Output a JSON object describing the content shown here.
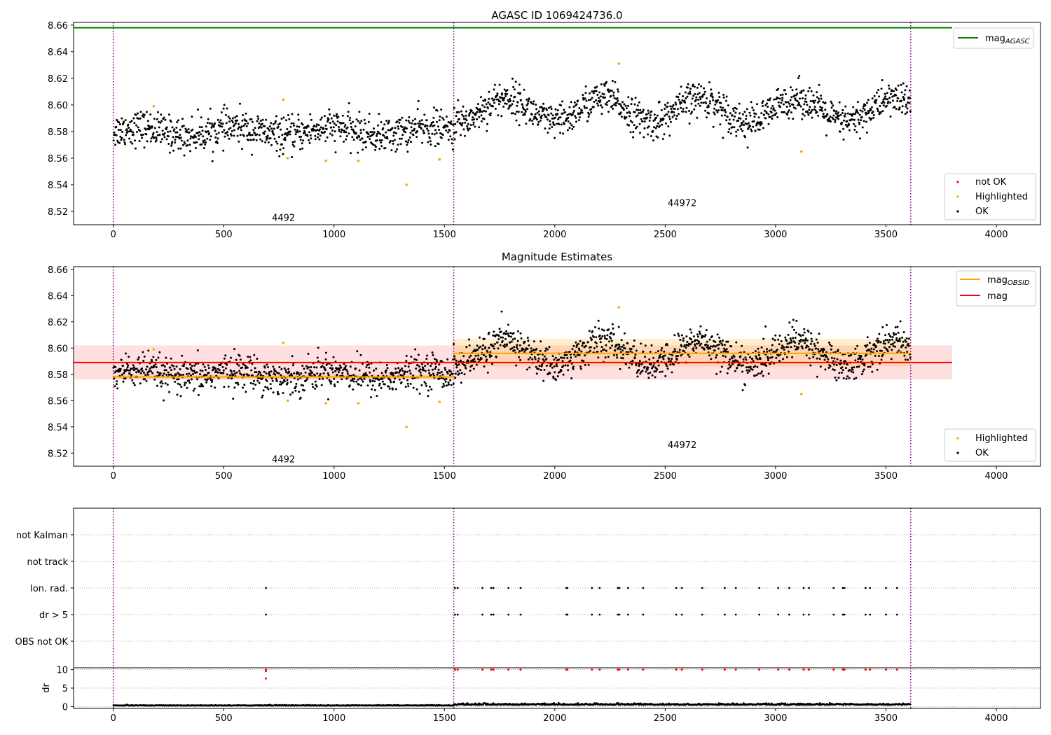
{
  "chart_data": [
    {
      "type": "scatter",
      "title": "AGASC ID 1069424736.0",
      "xlim": [
        -180,
        4200
      ],
      "ylim": [
        8.51,
        8.662
      ],
      "xticks": [
        0,
        500,
        1000,
        1500,
        2000,
        2500,
        3000,
        3500,
        4000
      ],
      "yticks": [
        8.52,
        8.54,
        8.56,
        8.58,
        8.6,
        8.62,
        8.64,
        8.66
      ],
      "obsid_boundaries": [
        0,
        1542,
        3612
      ],
      "obsid_labels": [
        {
          "text": "4492",
          "x": 771,
          "y": 8.515
        },
        {
          "text": "44972",
          "x": 2577,
          "y": 8.526
        }
      ],
      "lines": [
        {
          "name": "mag_AGASC",
          "legend_main": "mag",
          "legend_sub": "AGASC",
          "color": "#008000",
          "y": 8.658,
          "x": [
            -180,
            3800
          ]
        }
      ],
      "ok_segments": [
        {
          "x0": 0,
          "x1": 1542,
          "base": 8.58,
          "sd": 0.0065,
          "amp": 0.003,
          "count": 800,
          "color": "#000000"
        },
        {
          "x0": 1542,
          "x1": 3612,
          "base": 8.596,
          "sd": 0.0065,
          "amp": 0.009,
          "count": 1100,
          "color": "#000000"
        }
      ],
      "highlighted": {
        "x": [
          183,
          770,
          790,
          963,
          1110,
          1328,
          1478,
          2290,
          3117
        ],
        "y": [
          8.599,
          8.604,
          8.56,
          8.558,
          8.558,
          8.54,
          8.559,
          8.631,
          8.565
        ]
      },
      "not_ok": {
        "x": [],
        "y": []
      },
      "legend_markers": [
        {
          "label": "not OK",
          "color": "#ff0000"
        },
        {
          "label": "Highlighted",
          "color": "#ffa500"
        },
        {
          "label": "OK",
          "color": "#000000"
        }
      ],
      "grid": false,
      "legend": [
        "top-right",
        "bottom-right"
      ]
    },
    {
      "type": "scatter",
      "title": "Magnitude Estimates",
      "xlim": [
        -180,
        4200
      ],
      "ylim": [
        8.51,
        8.662
      ],
      "xticks": [
        0,
        500,
        1000,
        1500,
        2000,
        2500,
        3000,
        3500,
        4000
      ],
      "yticks": [
        8.52,
        8.54,
        8.56,
        8.58,
        8.6,
        8.62,
        8.64,
        8.66
      ],
      "obsid_boundaries": [
        0,
        1542,
        3612
      ],
      "obsid_labels": [
        {
          "text": "4492",
          "x": 771,
          "y": 8.515
        },
        {
          "text": "44972",
          "x": 2577,
          "y": 8.526
        }
      ],
      "bands": [
        {
          "x0": -180,
          "x1": 3800,
          "y0": 8.576,
          "y1": 8.602,
          "color": "#ff0000",
          "opacity": 0.12
        },
        {
          "x0": 0,
          "x1": 1542,
          "y0": 8.576,
          "y1": 8.58,
          "color": "#ffa500",
          "opacity": 0.25
        },
        {
          "x0": 1542,
          "x1": 3612,
          "y0": 8.586,
          "y1": 8.607,
          "color": "#ffa500",
          "opacity": 0.2
        }
      ],
      "lines": [
        {
          "name": "mag_OBSID",
          "legend_main": "mag",
          "legend_sub": "OBSID",
          "color": "#ffa500",
          "segments": [
            {
              "x0": 0,
              "x1": 1542,
              "y": 8.578
            },
            {
              "x0": 1542,
              "x1": 3612,
              "y": 8.596
            }
          ]
        },
        {
          "name": "mag",
          "legend_main": "mag",
          "legend_sub": "",
          "color": "#ff0000",
          "segments": [
            {
              "x0": -180,
              "x1": 3800,
              "y": 8.589
            }
          ]
        }
      ],
      "ok_segments": [
        {
          "x0": 0,
          "x1": 1542,
          "base": 8.58,
          "sd": 0.0065,
          "amp": 0.003,
          "count": 800,
          "color": "#000000"
        },
        {
          "x0": 1542,
          "x1": 3612,
          "base": 8.596,
          "sd": 0.0065,
          "amp": 0.009,
          "count": 1100,
          "color": "#000000"
        }
      ],
      "highlighted": {
        "x": [
          183,
          770,
          790,
          963,
          1110,
          1328,
          1478,
          2290,
          3117
        ],
        "y": [
          8.599,
          8.604,
          8.56,
          8.558,
          8.558,
          8.54,
          8.559,
          8.631,
          8.565
        ]
      },
      "legend_markers": [
        {
          "label": "Highlighted",
          "color": "#ffa500"
        },
        {
          "label": "OK",
          "color": "#000000"
        }
      ],
      "grid": false,
      "legend": [
        "top-right",
        "bottom-right"
      ]
    },
    {
      "type": "scatter",
      "title": "",
      "xlim": [
        -180,
        4200
      ],
      "categories": [
        "not Kalman",
        "not track",
        "Ion. rad.",
        "dr > 5",
        "OBS not OK"
      ],
      "flag_times": [
        691,
        1548,
        1560,
        1672,
        1712,
        1722,
        1790,
        1845,
        2052,
        2057,
        2168,
        2203,
        2286,
        2292,
        2332,
        2400,
        2550,
        2575,
        2668,
        2770,
        2820,
        2926,
        3012,
        3062,
        3127,
        3151,
        3263,
        3305,
        3312,
        3408,
        3428,
        3500,
        3550
      ],
      "flagged_rows": [
        "Ion. rad.",
        "dr > 5"
      ],
      "obsid_boundaries": [
        0,
        1542,
        3612
      ],
      "grid": true
    },
    {
      "type": "scatter",
      "title": "",
      "ylabel": "dr",
      "xlim": [
        -180,
        4200
      ],
      "ylim": [
        -0.5,
        10.5
      ],
      "xticks": [
        0,
        500,
        1000,
        1500,
        2000,
        2500,
        3000,
        3500,
        4000
      ],
      "yticks": [
        0,
        5,
        10
      ],
      "segments": [
        {
          "x0": 0,
          "x1": 1542,
          "base": 0.25,
          "sd": 0.08,
          "count": 500
        },
        {
          "x0": 1542,
          "x1": 3612,
          "base": 0.45,
          "sd": 0.18,
          "count": 700
        }
      ],
      "outliers": {
        "x": [
          691,
          691,
          691,
          1548,
          1560,
          1672,
          1712,
          1722,
          1790,
          1845,
          2052,
          2057,
          2168,
          2203,
          2286,
          2292,
          2332,
          2400,
          2550,
          2575,
          2668,
          2770,
          2820,
          2926,
          3012,
          3062,
          3127,
          3151,
          3263,
          3305,
          3312,
          3408,
          3428,
          3500,
          3550
        ],
        "y": [
          10,
          9.6,
          7.6,
          10,
          10,
          10,
          10,
          10,
          10,
          10,
          10,
          10,
          10,
          10,
          10,
          10,
          10,
          10,
          10,
          10,
          10,
          10,
          10,
          10,
          10,
          10,
          10,
          10,
          10,
          10,
          10,
          10,
          10,
          10,
          10
        ],
        "color": "#ff0000"
      },
      "obsid_boundaries": [
        0,
        1542,
        3612
      ],
      "grid": true
    }
  ]
}
